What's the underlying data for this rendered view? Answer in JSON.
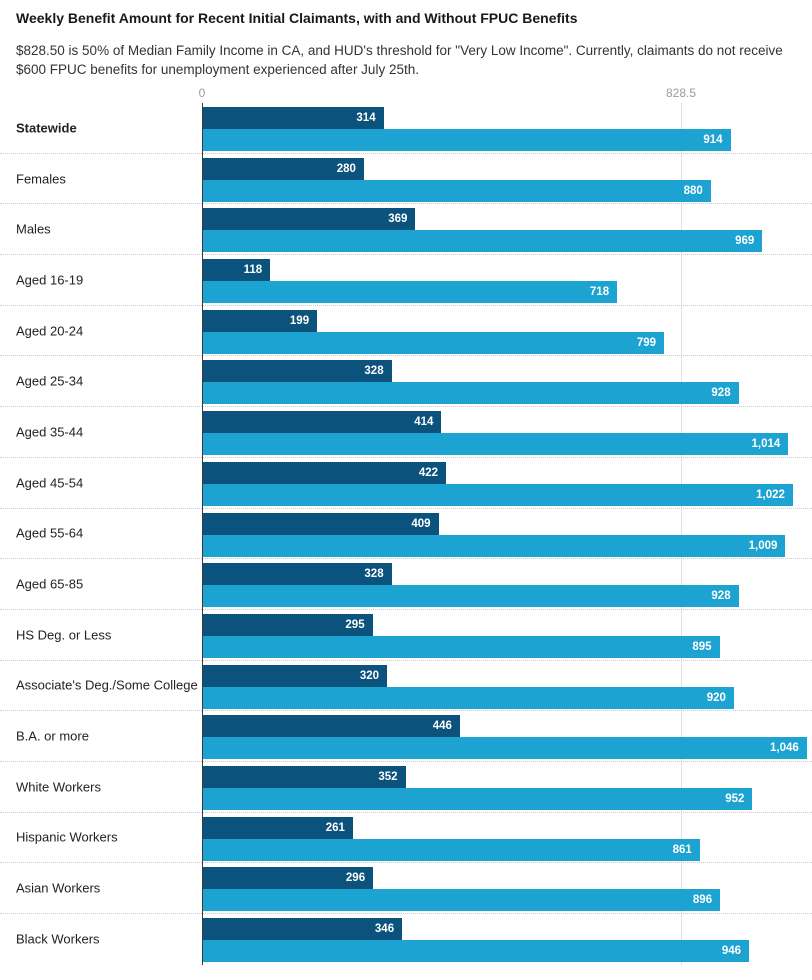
{
  "chart_data": {
    "type": "bar",
    "orientation": "horizontal",
    "title": "Weekly Benefit Amount for Recent Initial Claimants, with and Without FPUC Benefits",
    "subtitle": "$828.50 is 50% of Median Family Income in CA, and HUD's threshold for \"Very Low Income\". Currently, claimants do not receive $600 FPUC benefits for unemployment experienced after July 25th.",
    "xlabel": "",
    "ylabel": "",
    "legend_position": "none",
    "x_axis": {
      "ticks": [
        {
          "value": 0,
          "label": "0"
        },
        {
          "value": 828.5,
          "label": "828.5"
        }
      ],
      "implied_max": 1055,
      "grid": true
    },
    "colors": {
      "without_fpuc": "#0b527c",
      "with_fpuc": "#1ca3d1",
      "separator": "#cccccc",
      "axis_line": "#3a3a3a",
      "gridline": "#e0e0e0",
      "tick_label": "#9b9b9b"
    },
    "categories": [
      "Statewide",
      "Females",
      "Males",
      "Aged 16-19",
      "Aged 20-24",
      "Aged 25-34",
      "Aged 35-44",
      "Aged 45-54",
      "Aged 55-64",
      "Aged 65-85",
      "HS Deg. or Less",
      "Associate's Deg./Some College",
      "B.A. or more",
      "White Workers",
      "Hispanic Workers",
      "Asian Workers",
      "Black Workers"
    ],
    "series": [
      {
        "name": "Without FPUC",
        "color": "#0b527c",
        "values": [
          314,
          280,
          369,
          118,
          199,
          328,
          414,
          422,
          409,
          328,
          295,
          320,
          446,
          352,
          261,
          296,
          346
        ]
      },
      {
        "name": "With FPUC",
        "color": "#1ca3d1",
        "values": [
          914,
          880,
          969,
          718,
          799,
          928,
          1014,
          1022,
          1009,
          928,
          895,
          920,
          1046,
          952,
          861,
          896,
          946
        ]
      }
    ],
    "rows": [
      {
        "category": "Statewide",
        "bold": true,
        "without_fpuc": 314,
        "without_label": "314",
        "with_fpuc": 914,
        "with_label": "914"
      },
      {
        "category": "Females",
        "bold": false,
        "without_fpuc": 280,
        "without_label": "280",
        "with_fpuc": 880,
        "with_label": "880"
      },
      {
        "category": "Males",
        "bold": false,
        "without_fpuc": 369,
        "without_label": "369",
        "with_fpuc": 969,
        "with_label": "969"
      },
      {
        "category": "Aged 16-19",
        "bold": false,
        "without_fpuc": 118,
        "without_label": "118",
        "with_fpuc": 718,
        "with_label": "718"
      },
      {
        "category": "Aged 20-24",
        "bold": false,
        "without_fpuc": 199,
        "without_label": "199",
        "with_fpuc": 799,
        "with_label": "799"
      },
      {
        "category": "Aged 25-34",
        "bold": false,
        "without_fpuc": 328,
        "without_label": "328",
        "with_fpuc": 928,
        "with_label": "928"
      },
      {
        "category": "Aged 35-44",
        "bold": false,
        "without_fpuc": 414,
        "without_label": "414",
        "with_fpuc": 1014,
        "with_label": "1,014"
      },
      {
        "category": "Aged 45-54",
        "bold": false,
        "without_fpuc": 422,
        "without_label": "422",
        "with_fpuc": 1022,
        "with_label": "1,022"
      },
      {
        "category": "Aged 55-64",
        "bold": false,
        "without_fpuc": 409,
        "without_label": "409",
        "with_fpuc": 1009,
        "with_label": "1,009"
      },
      {
        "category": "Aged 65-85",
        "bold": false,
        "without_fpuc": 328,
        "without_label": "328",
        "with_fpuc": 928,
        "with_label": "928"
      },
      {
        "category": "HS Deg. or Less",
        "bold": false,
        "without_fpuc": 295,
        "without_label": "295",
        "with_fpuc": 895,
        "with_label": "895"
      },
      {
        "category": "Associate's Deg./Some College",
        "bold": false,
        "without_fpuc": 320,
        "without_label": "320",
        "with_fpuc": 920,
        "with_label": "920"
      },
      {
        "category": "B.A. or more",
        "bold": false,
        "without_fpuc": 446,
        "without_label": "446",
        "with_fpuc": 1046,
        "with_label": "1,046"
      },
      {
        "category": "White Workers",
        "bold": false,
        "without_fpuc": 352,
        "without_label": "352",
        "with_fpuc": 952,
        "with_label": "952"
      },
      {
        "category": "Hispanic Workers",
        "bold": false,
        "without_fpuc": 261,
        "without_label": "261",
        "with_fpuc": 861,
        "with_label": "861"
      },
      {
        "category": "Asian Workers",
        "bold": false,
        "without_fpuc": 296,
        "without_label": "296",
        "with_fpuc": 896,
        "with_label": "896"
      },
      {
        "category": "Black Workers",
        "bold": false,
        "without_fpuc": 346,
        "without_label": "346",
        "with_fpuc": 946,
        "with_label": "946"
      }
    ]
  }
}
